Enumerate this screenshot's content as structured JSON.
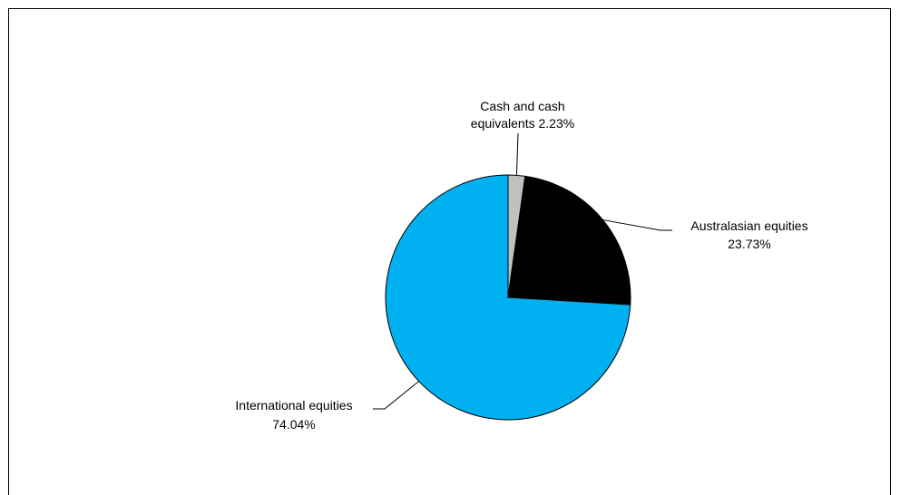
{
  "chart_data": {
    "type": "pie",
    "slices": [
      {
        "label_line1": "Cash and cash",
        "label_line2": "equivalents 2.23%",
        "name": "Cash and cash equivalents",
        "value": 2.23,
        "color": "#c0c0c0"
      },
      {
        "label_line1": "Australasian equities",
        "label_line2": "23.73%",
        "name": "Australasian equities",
        "value": 23.73,
        "color": "#000000"
      },
      {
        "label_line1": "International equities",
        "label_line2": "74.04%",
        "name": "International equities",
        "value": 74.04,
        "color": "#00b0f0"
      }
    ],
    "start_angle": "12 o'clock",
    "direction": "clockwise",
    "legend": "none"
  }
}
